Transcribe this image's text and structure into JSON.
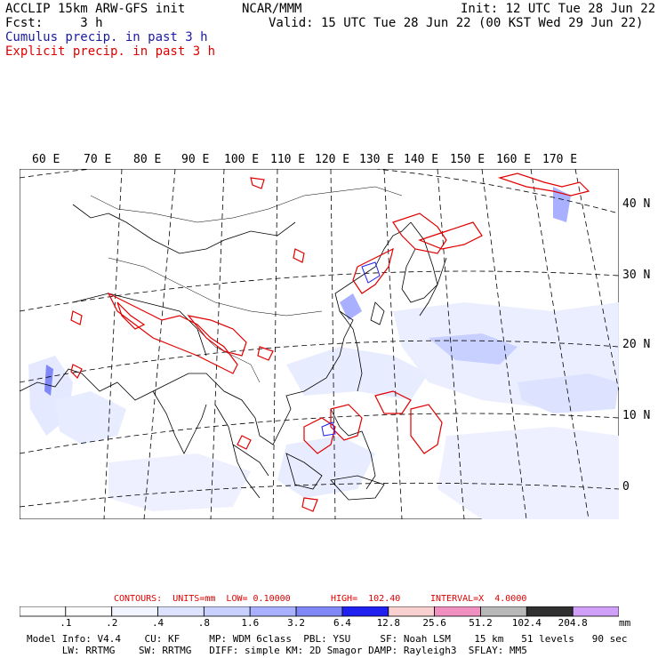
{
  "header": {
    "line1_left": "ACCLIP 15km ARW-GFS init",
    "line1_center": "NCAR/MMM",
    "line1_right": "Init: 12 UTC Tue 28 Jun 22",
    "line2_left": "Fcst:     3 h",
    "line2_right": "Valid: 15 UTC Tue 28 Jun 22 (00 KST Wed 29 Jun 22)",
    "cumulus_label": "Cumulus precip. in past 3 h",
    "explicit_label": "Explicit precip. in past 3 h",
    "cumulus_color": "#1a1aa0",
    "explicit_color": "#e00000"
  },
  "longitude_labels": [
    "60 E",
    "70 E",
    "80 E",
    "90 E",
    "100 E",
    "110 E",
    "120 E",
    "130 E",
    "140 E",
    "150 E",
    "160 E",
    "170 E"
  ],
  "latitude_labels": [
    "40 N",
    "30 N",
    "20 N",
    "10 N",
    "0"
  ],
  "contours": {
    "label": "CONTOURS:  UNITS=mm  LOW= 0.10000",
    "high": "HIGH=  102.40",
    "interval": "INTERVAL=X  4.0000"
  },
  "legend": {
    "labels": [
      ".1",
      ".2",
      ".4",
      ".8",
      "1.6",
      "3.2",
      "6.4",
      "12.8",
      "25.6",
      "51.2",
      "102.4",
      "204.8"
    ],
    "units": "mm",
    "colors": [
      "#ffffff",
      "#ffffff",
      "#f2f4ff",
      "#dde3ff",
      "#c8d0ff",
      "#a8b0ff",
      "#8088f8",
      "#2020f0",
      "#f8d0d0",
      "#f090c0",
      "#b8b8b8",
      "#303030",
      "#d0a0f8"
    ]
  },
  "model_info": {
    "line1": "Model Info: V4.4    CU: KF     MP: WDM 6class  PBL: YSU     SF: Noah LSM    15 km   51 levels   90 sec",
    "line2": "      LW: RRTMG    SW: RRTMG   DIFF: simple KM: 2D Smagor DAMP: Rayleigh3  SFLAY: MM5"
  }
}
